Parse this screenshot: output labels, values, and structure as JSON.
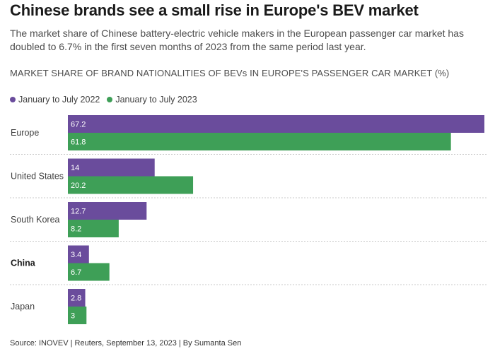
{
  "header": {
    "title": "Chinese brands see a small rise in Europe's BEV market",
    "subtitle": "The market share of Chinese battery-electric vehicle makers in the European passenger car market has doubled to 6.7% in the first seven months of 2023 from the same period last year."
  },
  "footer": {
    "source": "Source: INOVEV | Reuters, September 13, 2023 | By Sumanta Sen"
  },
  "chart_data": {
    "type": "bar",
    "orientation": "horizontal",
    "title": "MARKET SHARE OF BRAND NATIONALITIES OF BEVs IN EUROPE'S PASSENGER CAR MARKET (%)",
    "xlabel": "",
    "ylabel": "",
    "xlim": [
      0,
      67.2
    ],
    "grid": false,
    "legend_position": "top-left",
    "categories": [
      "Europe",
      "United States",
      "South Korea",
      "China",
      "Japan"
    ],
    "highlight_category": "China",
    "series": [
      {
        "name": "January to July 2022",
        "color": "#6a4c9c",
        "values": [
          67.2,
          14,
          12.7,
          3.4,
          2.8
        ],
        "labels": [
          "67.2",
          "14",
          "12.7",
          "3.4",
          "2.8"
        ]
      },
      {
        "name": "January to July 2023",
        "color": "#3e9f57",
        "values": [
          61.8,
          20.2,
          8.2,
          6.7,
          3
        ],
        "labels": [
          "61.8",
          "20.2",
          "8.2",
          "6.7",
          "3"
        ]
      }
    ]
  }
}
